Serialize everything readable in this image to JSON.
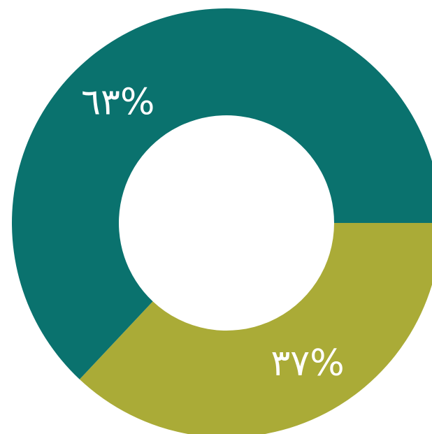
{
  "chart_data": {
    "type": "pie",
    "variant": "donut",
    "title": "",
    "slices": [
      {
        "label": "٦٣%",
        "value": 63,
        "color": "#0a726e"
      },
      {
        "label": "٣٧%",
        "value": 37,
        "color": "#aaab37"
      }
    ],
    "legend": "none",
    "grid": false
  }
}
